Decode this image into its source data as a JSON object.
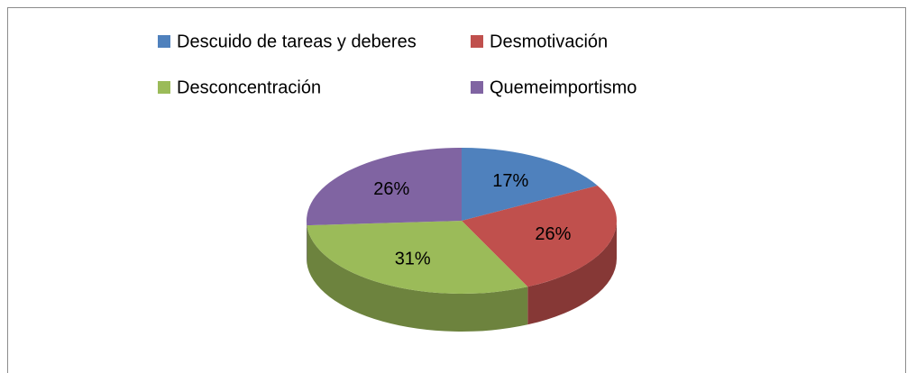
{
  "chart_data": {
    "type": "pie3d",
    "categories": [
      "Descuido de tareas y deberes",
      "Desmotivación",
      "Desconcentración",
      "Quemeimportismo"
    ],
    "values": [
      17,
      26,
      31,
      26
    ],
    "value_labels": [
      "17%",
      "26%",
      "31%",
      "26%"
    ],
    "colors": [
      "#4f81bd",
      "#c0504d",
      "#9bbb59",
      "#8064a2"
    ],
    "legend": "top"
  }
}
